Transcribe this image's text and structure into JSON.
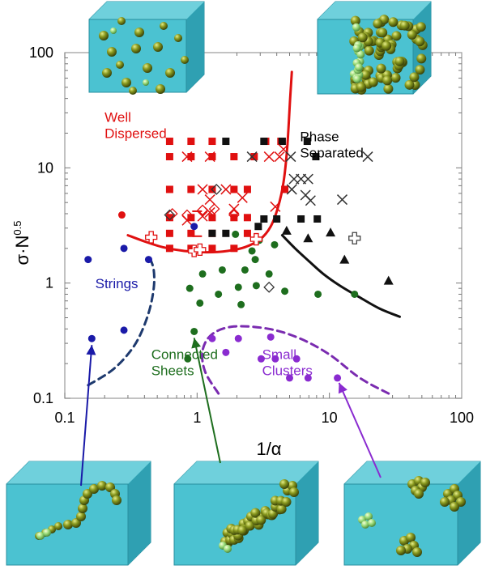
{
  "chart_data": {
    "type": "scatter",
    "title": "",
    "xlabel": "1/α",
    "ylabel_main": "σ·N",
    "ylabel_sup": "0.5",
    "xscale": "log",
    "yscale": "log",
    "xlim": [
      0.1,
      100
    ],
    "ylim": [
      0.1,
      100
    ],
    "x_ticks": [
      {
        "value": 0.1,
        "label": "0.1"
      },
      {
        "value": 1,
        "label": "1"
      },
      {
        "value": 10,
        "label": "10"
      },
      {
        "value": 100,
        "label": "100"
      }
    ],
    "y_ticks": [
      {
        "value": 0.1,
        "label": "0.1"
      },
      {
        "value": 1,
        "label": "1"
      },
      {
        "value": 10,
        "label": "10"
      },
      {
        "value": 100,
        "label": "100"
      }
    ],
    "grid": false,
    "region_labels": [
      {
        "lines": [
          "Well",
          "Dispersed"
        ],
        "color": "#e01010",
        "x": 0.2,
        "y": 25
      },
      {
        "lines": [
          "Phase",
          "Separated"
        ],
        "color": "#000000",
        "x": 6,
        "y": 17
      },
      {
        "lines": [
          "Strings"
        ],
        "color": "#1a1aa8",
        "x": 0.17,
        "y": 0.9
      },
      {
        "lines": [
          "Connected",
          "Sheets"
        ],
        "color": "#1e6e1e",
        "x": 0.45,
        "y": 0.22
      },
      {
        "lines": [
          "Small",
          "Clusters"
        ],
        "color": "#8a2bd0",
        "x": 3.1,
        "y": 0.22
      }
    ],
    "series": [
      {
        "marker": "square",
        "color": "#e01010",
        "points": [
          [
            0.62,
            17
          ],
          [
            0.9,
            17
          ],
          [
            1.3,
            17
          ],
          [
            0.62,
            12.5
          ],
          [
            0.9,
            12.5
          ],
          [
            1.3,
            12.5
          ],
          [
            1.9,
            12.5
          ],
          [
            0.62,
            6.5
          ],
          [
            0.9,
            6.5
          ],
          [
            1.3,
            6.5
          ],
          [
            1.9,
            6.5
          ],
          [
            2.4,
            6.5
          ],
          [
            4.6,
            6.5
          ],
          [
            0.62,
            3.7
          ],
          [
            0.9,
            3.7
          ],
          [
            1.3,
            3.7
          ],
          [
            1.9,
            3.7
          ],
          [
            2.4,
            3.7
          ],
          [
            0.62,
            2.7
          ],
          [
            0.9,
            2.7
          ],
          [
            1.3,
            2.7
          ],
          [
            2.4,
            2.7
          ],
          [
            0.62,
            2.0
          ],
          [
            0.9,
            2.0
          ],
          [
            1.3,
            2.0
          ],
          [
            1.9,
            2.0
          ],
          [
            4.3,
            17
          ],
          [
            2.7,
            12.5
          ],
          [
            3.3,
            17
          ]
        ]
      },
      {
        "marker": "square",
        "color": "#111111",
        "points": [
          [
            1.65,
            17
          ],
          [
            3.2,
            17
          ],
          [
            4.4,
            17
          ],
          [
            6.8,
            17
          ],
          [
            7.9,
            12.5
          ],
          [
            3.2,
            3.6
          ],
          [
            4.0,
            3.6
          ],
          [
            6.1,
            3.6
          ],
          [
            8.1,
            3.6
          ],
          [
            1.65,
            2.7
          ],
          [
            1.3,
            2.7
          ],
          [
            2.9,
            3.1
          ]
        ]
      },
      {
        "marker": "x",
        "color": "#e01010",
        "points": [
          [
            0.84,
            12.5
          ],
          [
            1.25,
            12.5
          ],
          [
            3.5,
            12.5
          ],
          [
            4.2,
            12.5
          ],
          [
            4.5,
            14.5
          ],
          [
            1.1,
            6.5
          ],
          [
            1.25,
            5.3
          ],
          [
            1.65,
            6.5
          ],
          [
            2.2,
            5.5
          ],
          [
            1.1,
            3.8
          ],
          [
            1.9,
            4.4
          ],
          [
            1.25,
            4.1
          ],
          [
            0.84,
            3.5
          ],
          [
            3.9,
            4.6
          ]
        ]
      },
      {
        "marker": "x",
        "color": "#333333",
        "points": [
          [
            2.6,
            12.5
          ],
          [
            5.1,
            12.5
          ],
          [
            19.5,
            12.5
          ],
          [
            5.4,
            8.0
          ],
          [
            6.1,
            8.0
          ],
          [
            6.9,
            8.0
          ],
          [
            5.2,
            6.5
          ],
          [
            6.6,
            5.8
          ],
          [
            7.2,
            5.2
          ],
          [
            12.5,
            5.3
          ]
        ]
      },
      {
        "marker": "circle",
        "color": "#e01010",
        "points": [
          [
            0.27,
            3.9
          ]
        ]
      },
      {
        "marker": "circle",
        "color": "#1a1aa8",
        "points": [
          [
            0.15,
            1.6
          ],
          [
            0.28,
            2.0
          ],
          [
            0.43,
            1.6
          ],
          [
            0.16,
            0.33
          ],
          [
            0.28,
            0.39
          ],
          [
            0.95,
            3.1
          ]
        ]
      },
      {
        "marker": "circle",
        "color": "#1e6e1e",
        "points": [
          [
            1.95,
            2.65
          ],
          [
            2.95,
            2.35
          ],
          [
            3.85,
            2.15
          ],
          [
            2.6,
            1.9
          ],
          [
            2.75,
            1.6
          ],
          [
            2.3,
            1.3
          ],
          [
            3.5,
            1.2
          ],
          [
            1.55,
            1.3
          ],
          [
            1.1,
            1.2
          ],
          [
            2.05,
            0.92
          ],
          [
            2.8,
            0.95
          ],
          [
            0.88,
            0.9
          ],
          [
            1.45,
            0.8
          ],
          [
            4.6,
            0.85
          ],
          [
            1.05,
            0.67
          ],
          [
            2.15,
            0.65
          ],
          [
            8.2,
            0.8
          ],
          [
            15.5,
            0.8
          ],
          [
            0.95,
            0.38
          ],
          [
            0.85,
            0.22
          ]
        ]
      },
      {
        "marker": "circle",
        "color": "#8a2bd0",
        "points": [
          [
            1.3,
            0.33
          ],
          [
            2.05,
            0.33
          ],
          [
            1.65,
            0.25
          ],
          [
            3.05,
            0.22
          ],
          [
            3.9,
            0.22
          ],
          [
            5.65,
            0.22
          ],
          [
            5.0,
            0.15
          ],
          [
            6.9,
            0.15
          ],
          [
            11.5,
            0.15
          ],
          [
            3.6,
            0.34
          ]
        ]
      },
      {
        "marker": "diamond",
        "color": "#e01010",
        "points": [
          [
            0.65,
            4.0
          ],
          [
            1.35,
            4.4
          ],
          [
            1.9,
            3.9
          ],
          [
            0.84,
            3.9
          ],
          [
            1.1,
            4.3
          ]
        ]
      },
      {
        "marker": "diamond",
        "color": "#333333",
        "points": [
          [
            0.62,
            3.9
          ],
          [
            1.4,
            6.5
          ],
          [
            3.5,
            0.92
          ]
        ]
      },
      {
        "marker": "plus",
        "color": "#e01010",
        "points": [
          [
            0.45,
            2.5
          ],
          [
            0.95,
            1.9
          ],
          [
            1.05,
            1.95
          ],
          [
            2.8,
            2.4
          ]
        ]
      },
      {
        "marker": "plus",
        "color": "#444444",
        "points": [
          [
            15.5,
            2.45
          ]
        ]
      },
      {
        "marker": "triangle",
        "color": "#111111",
        "points": [
          [
            4.75,
            2.85
          ],
          [
            6.9,
            2.45
          ],
          [
            10.2,
            2.75
          ],
          [
            13.0,
            1.6
          ],
          [
            28,
            1.05
          ]
        ]
      },
      {
        "marker": "dash",
        "color": "#e01010",
        "points": [
          [
            1.0,
            4.2
          ],
          [
            1.0,
            2.55
          ]
        ]
      }
    ],
    "curves": [
      {
        "name": "red-boundary",
        "color": "#e01010",
        "dash": false,
        "points": [
          [
            0.3,
            2.6
          ],
          [
            0.4,
            2.3
          ],
          [
            0.55,
            2.05
          ],
          [
            0.8,
            1.9
          ],
          [
            1.2,
            1.85
          ],
          [
            1.7,
            1.9
          ],
          [
            2.3,
            2.05
          ],
          [
            3.0,
            2.4
          ],
          [
            3.6,
            3.1
          ],
          [
            4.1,
            4.6
          ],
          [
            4.5,
            7.5
          ],
          [
            4.8,
            15
          ],
          [
            5.05,
            40
          ],
          [
            5.2,
            68
          ]
        ]
      },
      {
        "name": "black-boundary",
        "color": "#111111",
        "dash": false,
        "points": [
          [
            4.4,
            2.6
          ],
          [
            5.5,
            2.0
          ],
          [
            7,
            1.55
          ],
          [
            9,
            1.2
          ],
          [
            12,
            0.95
          ],
          [
            17,
            0.75
          ],
          [
            24,
            0.6
          ],
          [
            34,
            0.51
          ]
        ]
      },
      {
        "name": "strings-boundary",
        "color": "#1e3a6e",
        "dash": true,
        "points": [
          [
            0.15,
            0.13
          ],
          [
            0.22,
            0.17
          ],
          [
            0.29,
            0.23
          ],
          [
            0.36,
            0.33
          ],
          [
            0.43,
            0.55
          ],
          [
            0.47,
            0.9
          ],
          [
            0.47,
            1.3
          ],
          [
            0.44,
            1.65
          ]
        ]
      },
      {
        "name": "clusters-boundary",
        "color": "#7a2bb0",
        "dash": true,
        "points": [
          [
            1.45,
            0.11
          ],
          [
            1.15,
            0.17
          ],
          [
            1.1,
            0.26
          ],
          [
            1.3,
            0.36
          ],
          [
            1.9,
            0.42
          ],
          [
            3.5,
            0.4
          ],
          [
            6,
            0.33
          ],
          [
            10,
            0.24
          ],
          [
            17,
            0.15
          ],
          [
            28,
            0.11
          ]
        ]
      }
    ],
    "insets": [
      {
        "name": "inset-well-dispersed",
        "kind": "dispersed"
      },
      {
        "name": "inset-phase-separated",
        "kind": "separated"
      },
      {
        "name": "inset-strings",
        "kind": "strings"
      },
      {
        "name": "inset-connected-sheets",
        "kind": "sheets"
      },
      {
        "name": "inset-small-clusters",
        "kind": "clusters"
      }
    ],
    "arrows": [
      {
        "name": "arrow-strings",
        "color": "#1a1aa8"
      },
      {
        "name": "arrow-sheets",
        "color": "#1e6e1e"
      },
      {
        "name": "arrow-clusters",
        "color": "#8a2bd0"
      }
    ]
  }
}
